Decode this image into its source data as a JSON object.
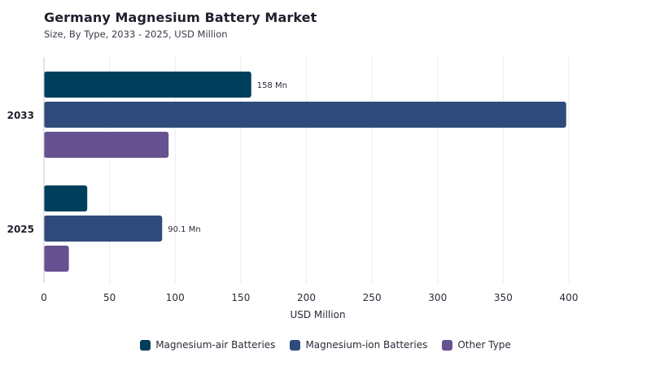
{
  "header": {
    "title": "Germany Magnesium Battery Market",
    "subtitle": "Size, By Type, 2033 - 2025, USD Million"
  },
  "chart_data": {
    "type": "bar",
    "orientation": "horizontal",
    "title": "Germany Magnesium Battery Market",
    "subtitle": "Size, By Type, 2033 - 2025, USD Million",
    "xlabel": "USD Million",
    "ylabel": "",
    "xlim": [
      0,
      400
    ],
    "x_ticks": [
      "0",
      "50",
      "100",
      "150",
      "200",
      "250",
      "300",
      "350",
      "400"
    ],
    "categories": [
      "2033",
      "2025"
    ],
    "series": [
      {
        "name": "Magnesium-air Batteries",
        "color": "#003f5c",
        "values": [
          158,
          33
        ]
      },
      {
        "name": "Magnesium-ion Batteries",
        "color": "#2f4b7c",
        "values": [
          398,
          90.1
        ]
      },
      {
        "name": "Other Type",
        "color": "#665191",
        "values": [
          95,
          19
        ]
      }
    ],
    "data_labels": [
      {
        "category": "2033",
        "series": "Magnesium-air Batteries",
        "text": "158 Mn"
      },
      {
        "category": "2025",
        "series": "Magnesium-ion Batteries",
        "text": "90.1 Mn"
      }
    ],
    "grid": "vertical",
    "legend_position": "bottom-center"
  }
}
